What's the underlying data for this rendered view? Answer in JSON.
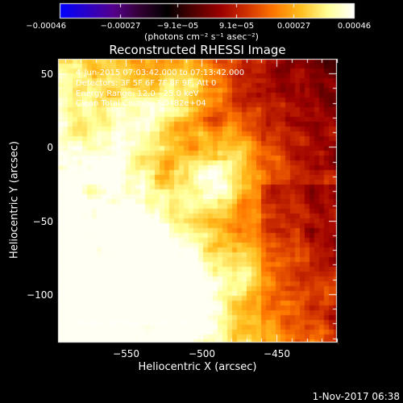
{
  "chart_data": {
    "type": "heatmap",
    "title": "Reconstructed RHESSI Image",
    "xlabel": "Heliocentric X (arcsec)",
    "ylabel": "Heliocentric Y (arcsec)",
    "xlim": [
      -595,
      -410
    ],
    "ylim": [
      -133,
      60
    ],
    "x_ticks": [
      "−550",
      "−500",
      "−450"
    ],
    "x_tick_values": [
      -550,
      -500,
      -450
    ],
    "y_ticks": [
      "50",
      "0",
      "−50",
      "−100"
    ],
    "y_tick_values": [
      50,
      0,
      -50,
      -100
    ],
    "colorbar": {
      "title": "(photons cm⁻² s⁻¹ asec⁻²)",
      "range": [
        -0.00046,
        0.00046
      ],
      "tick_labels": [
        "−0.00046",
        "−0.00027",
        "−9.1e−05",
        "9.1e−05",
        "0.00027",
        "0.00046"
      ],
      "tick_values": [
        -0.00046,
        -0.00027,
        -9.1e-05,
        9.1e-05,
        0.00027,
        0.00046
      ],
      "colormap": [
        "#0000ff",
        "#2a00c8",
        "#55008c",
        "#320032",
        "#000000",
        "#500000",
        "#9b0000",
        "#d23200",
        "#ff7800",
        "#ffbe1e",
        "#ffff96",
        "#ffffff"
      ]
    },
    "annotations": [
      "4-Jun-2015 07:03:42.000 to 07:13:42.000",
      "Detectors: 3F 5F 6F 7F 8F 9F, Att 0",
      "Energy Range: 12.0 - 25.0 keV",
      "Clean    Total Counts: 3.0482e+04"
    ],
    "peak_label": "Position of Peak = [-491,-26]",
    "peak_position": [
      -491,
      -26
    ]
  },
  "footer": {
    "date": "1-Nov-2017 06:38"
  }
}
